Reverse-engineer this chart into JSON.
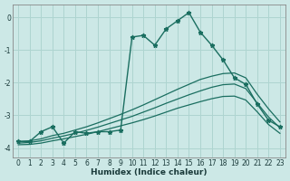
{
  "xlabel": "Humidex (Indice chaleur)",
  "bg_color": "#cce8e6",
  "grid_color": "#aed4d0",
  "line_color": "#1a6e60",
  "xlim": [
    -0.5,
    23.5
  ],
  "ylim": [
    -4.3,
    0.4
  ],
  "xticks": [
    0,
    1,
    2,
    3,
    4,
    5,
    6,
    7,
    8,
    9,
    10,
    11,
    12,
    13,
    14,
    15,
    16,
    17,
    18,
    19,
    20,
    21,
    22,
    23
  ],
  "yticks": [
    0,
    -1,
    -2,
    -3,
    -4
  ],
  "line_main_y": [
    -3.8,
    -3.8,
    -3.5,
    -3.35,
    -3.85,
    -3.5,
    -3.55,
    -3.5,
    -3.5,
    -3.45,
    -0.6,
    -0.55,
    -0.85,
    -0.35,
    -0.1,
    0.15,
    -0.45,
    -0.85,
    -1.3,
    -1.85,
    -2.05,
    -2.65,
    -3.15,
    -3.35
  ],
  "line_smooth1_y": [
    -3.8,
    -3.78,
    -3.72,
    -3.62,
    -3.55,
    -3.45,
    -3.35,
    -3.23,
    -3.1,
    -2.97,
    -2.83,
    -2.68,
    -2.52,
    -2.36,
    -2.2,
    -2.05,
    -1.9,
    -1.8,
    -1.72,
    -1.7,
    -1.85,
    -2.35,
    -2.8,
    -3.2
  ],
  "line_smooth2_y": [
    -3.85,
    -3.83,
    -3.78,
    -3.7,
    -3.63,
    -3.55,
    -3.46,
    -3.36,
    -3.25,
    -3.14,
    -3.03,
    -2.9,
    -2.77,
    -2.63,
    -2.5,
    -2.37,
    -2.25,
    -2.14,
    -2.06,
    -2.04,
    -2.18,
    -2.62,
    -3.05,
    -3.38
  ],
  "line_smooth3_y": [
    -3.9,
    -3.89,
    -3.85,
    -3.78,
    -3.72,
    -3.65,
    -3.58,
    -3.5,
    -3.41,
    -3.32,
    -3.23,
    -3.13,
    -3.02,
    -2.9,
    -2.78,
    -2.68,
    -2.58,
    -2.49,
    -2.42,
    -2.41,
    -2.53,
    -2.89,
    -3.28,
    -3.55
  ]
}
